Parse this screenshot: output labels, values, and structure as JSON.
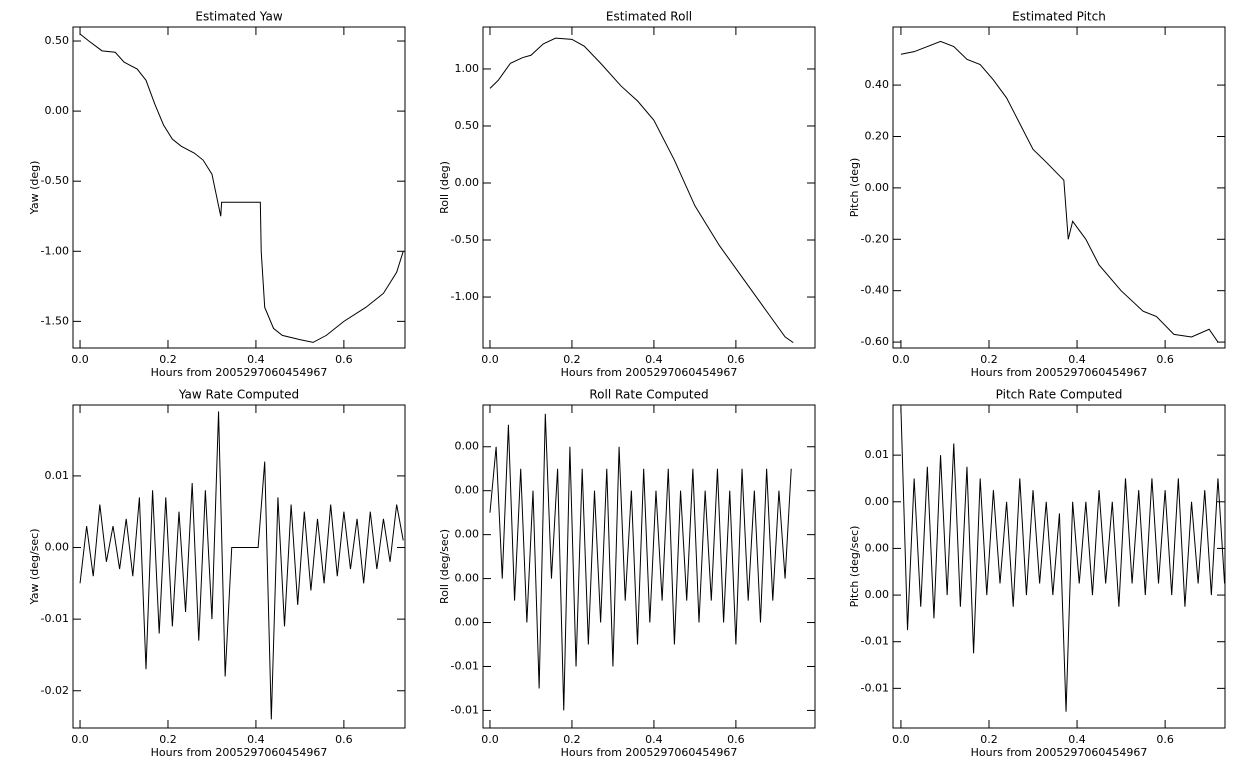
{
  "chart_data": [
    {
      "type": "line",
      "title": "Estimated Yaw",
      "xlabel": "Hours from 2005297060454967",
      "ylabel": "Yaw (deg)",
      "color": "#000000",
      "x": [
        0,
        0.02,
        0.05,
        0.08,
        0.1,
        0.13,
        0.15,
        0.17,
        0.19,
        0.21,
        0.23,
        0.26,
        0.28,
        0.3,
        0.31,
        0.32,
        0.322,
        0.41,
        0.412,
        0.42,
        0.44,
        0.46,
        0.5,
        0.53,
        0.56,
        0.6,
        0.65,
        0.69,
        0.72,
        0.735
      ],
      "values": [
        0.55,
        0.5,
        0.43,
        0.42,
        0.35,
        0.3,
        0.22,
        0.05,
        -0.1,
        -0.2,
        -0.25,
        -0.3,
        -0.35,
        -0.45,
        -0.6,
        -0.75,
        -0.65,
        -0.65,
        -1.0,
        -1.4,
        -1.55,
        -1.6,
        -1.63,
        -1.65,
        -1.6,
        -1.5,
        -1.4,
        -1.3,
        -1.15,
        -1.0
      ],
      "xlim": [
        -0.016,
        0.739
      ],
      "ylim": [
        -1.69,
        0.6
      ],
      "xticks": [
        {
          "value": 0,
          "label": "0.0"
        },
        0.2,
        0.4,
        0.6
      ],
      "yticks": [
        {
          "value": 0.5,
          "label": "0.50"
        },
        {
          "value": 0,
          "label": "0.00"
        },
        {
          "value": -0.5,
          "label": "-0.50"
        },
        {
          "value": -1,
          "label": "-1.00"
        },
        {
          "value": -1.5,
          "label": "-1.50"
        }
      ]
    },
    {
      "type": "line",
      "title": "Estimated Roll",
      "xlabel": "Hours from 2005297060454967",
      "ylabel": "Roll (deg)",
      "color": "#000000",
      "x": [
        0,
        0.02,
        0.05,
        0.08,
        0.1,
        0.13,
        0.16,
        0.2,
        0.23,
        0.27,
        0.32,
        0.36,
        0.4,
        0.45,
        0.5,
        0.56,
        0.62,
        0.68,
        0.72,
        0.74
      ],
      "values": [
        0.83,
        0.9,
        1.05,
        1.1,
        1.12,
        1.22,
        1.27,
        1.26,
        1.2,
        1.05,
        0.85,
        0.72,
        0.55,
        0.2,
        -0.2,
        -0.55,
        -0.85,
        -1.15,
        -1.35,
        -1.4
      ],
      "xlim": [
        -0.017,
        0.793
      ],
      "ylim": [
        -1.447,
        1.368
      ],
      "xticks": [
        {
          "value": 0,
          "label": "0.0"
        },
        0.2,
        0.4,
        0.6
      ],
      "yticks": [
        {
          "value": 1,
          "label": "1.00"
        },
        {
          "value": 0.5,
          "label": "0.50"
        },
        {
          "value": 0,
          "label": "0.00"
        },
        {
          "value": -0.5,
          "label": "-0.50"
        },
        {
          "value": -1,
          "label": "-1.00"
        }
      ]
    },
    {
      "type": "line",
      "title": "Estimated Pitch",
      "xlabel": "Hours from 2005297060454967",
      "ylabel": "Pitch (deg)",
      "color": "#000000",
      "x": [
        0,
        0.03,
        0.06,
        0.09,
        0.12,
        0.15,
        0.18,
        0.21,
        0.24,
        0.27,
        0.3,
        0.33,
        0.37,
        0.38,
        0.39,
        0.42,
        0.45,
        0.5,
        0.55,
        0.58,
        0.62,
        0.66,
        0.7,
        0.72
      ],
      "values": [
        0.52,
        0.53,
        0.55,
        0.57,
        0.55,
        0.5,
        0.48,
        0.42,
        0.35,
        0.25,
        0.15,
        0.1,
        0.03,
        -0.2,
        -0.13,
        -0.2,
        -0.3,
        -0.4,
        -0.48,
        -0.5,
        -0.57,
        -0.58,
        -0.55,
        -0.6
      ],
      "xlim": [
        -0.018,
        0.736
      ],
      "ylim": [
        -0.623,
        0.626
      ],
      "xticks": [
        {
          "value": 0,
          "label": "0.0"
        },
        0.2,
        0.4,
        0.6
      ],
      "yticks": [
        {
          "value": 0.4,
          "label": "0.40"
        },
        {
          "value": 0.2,
          "label": "0.20"
        },
        {
          "value": 0,
          "label": "0.00"
        },
        {
          "value": -0.2,
          "label": "-0.20"
        },
        {
          "value": -0.4,
          "label": "-0.40"
        },
        {
          "value": -0.6,
          "label": "-0.60"
        }
      ]
    },
    {
      "type": "line",
      "title": "Yaw Rate Computed",
      "xlabel": "Hours from 2005297060454967",
      "ylabel": "Yaw (deg/sec)",
      "color": "#000000",
      "x": [
        0,
        0.015,
        0.03,
        0.045,
        0.06,
        0.075,
        0.09,
        0.105,
        0.12,
        0.135,
        0.15,
        0.165,
        0.18,
        0.195,
        0.21,
        0.225,
        0.24,
        0.255,
        0.27,
        0.285,
        0.3,
        0.315,
        0.33,
        0.345,
        0.36,
        0.375,
        0.39,
        0.405,
        0.42,
        0.435,
        0.45,
        0.465,
        0.48,
        0.495,
        0.51,
        0.525,
        0.54,
        0.555,
        0.57,
        0.585,
        0.6,
        0.615,
        0.63,
        0.645,
        0.66,
        0.675,
        0.69,
        0.705,
        0.72,
        0.735
      ],
      "values": [
        -0.005,
        0.003,
        -0.004,
        0.006,
        -0.002,
        0.003,
        -0.003,
        0.004,
        -0.004,
        0.007,
        -0.017,
        0.008,
        -0.012,
        0.007,
        -0.011,
        0.005,
        -0.009,
        0.009,
        -0.013,
        0.008,
        -0.01,
        0.019,
        -0.018,
        0,
        0,
        0,
        0,
        0,
        0.012,
        -0.024,
        0.007,
        -0.011,
        0.006,
        -0.008,
        0.005,
        -0.006,
        0.004,
        -0.005,
        0.006,
        -0.004,
        0.005,
        -0.003,
        0.004,
        -0.005,
        0.005,
        -0.003,
        0.004,
        -0.002,
        0.006,
        0.001
      ],
      "xlim": [
        -0.016,
        0.739
      ],
      "ylim": [
        -0.0252,
        0.0199
      ],
      "xticks": [
        {
          "value": 0,
          "label": "0.0"
        },
        0.2,
        0.4,
        0.6
      ],
      "yticks": [
        0.01,
        {
          "value": 0,
          "label": "0.00"
        },
        -0.01,
        -0.02
      ]
    },
    {
      "type": "line",
      "title": "Roll Rate Computed",
      "xlabel": "Hours from 2005297060454967",
      "ylabel": "Roll (deg/sec)",
      "color": "#000000",
      "x": [
        0,
        0.015,
        0.03,
        0.045,
        0.06,
        0.075,
        0.09,
        0.105,
        0.12,
        0.135,
        0.15,
        0.165,
        0.18,
        0.195,
        0.21,
        0.225,
        0.24,
        0.255,
        0.27,
        0.285,
        0.3,
        0.315,
        0.33,
        0.345,
        0.36,
        0.375,
        0.39,
        0.405,
        0.42,
        0.435,
        0.45,
        0.465,
        0.48,
        0.495,
        0.51,
        0.525,
        0.54,
        0.555,
        0.57,
        0.585,
        0.6,
        0.615,
        0.63,
        0.645,
        0.66,
        0.675,
        0.69,
        0.705,
        0.72,
        0.735
      ],
      "values": [
        0.001,
        0.004,
        -0.002,
        0.005,
        -0.003,
        0.003,
        -0.004,
        0.002,
        -0.007,
        0.0055,
        -0.002,
        0.003,
        -0.008,
        0.004,
        -0.006,
        0.003,
        -0.005,
        0.002,
        -0.004,
        0.003,
        -0.006,
        0.004,
        -0.003,
        0.002,
        -0.005,
        0.003,
        -0.004,
        0.002,
        -0.003,
        0.003,
        -0.005,
        0.002,
        -0.003,
        0.003,
        -0.004,
        0.002,
        -0.003,
        0.003,
        -0.004,
        0.002,
        -0.005,
        0.003,
        -0.003,
        0.002,
        -0.004,
        0.003,
        -0.003,
        0.002,
        -0.002,
        0.003
      ],
      "xlim": [
        -0.017,
        0.793
      ],
      "ylim": [
        -0.0088,
        0.0059
      ],
      "xticks": [
        {
          "value": 0,
          "label": "0.0"
        },
        0.2,
        0.4,
        0.6
      ],
      "yticks": [
        {
          "value": 0.004,
          "label": "0.00"
        },
        {
          "value": 0.002,
          "label": "0.00"
        },
        {
          "value": 0,
          "label": "0.00"
        },
        {
          "value": -0.002,
          "label": "0.00"
        },
        {
          "value": -0.004,
          "label": "0.00"
        },
        {
          "value": -0.006,
          "label": "-0.01"
        },
        {
          "value": -0.008,
          "label": "-0.01"
        }
      ]
    },
    {
      "type": "line",
      "title": "Pitch Rate Computed",
      "xlabel": "Hours from 2005297060454967",
      "ylabel": "Pitch (deg/sec)",
      "color": "#000000",
      "x": [
        0,
        0.015,
        0.03,
        0.045,
        0.06,
        0.075,
        0.09,
        0.105,
        0.12,
        0.135,
        0.15,
        0.165,
        0.18,
        0.195,
        0.21,
        0.225,
        0.24,
        0.255,
        0.27,
        0.285,
        0.3,
        0.315,
        0.33,
        0.345,
        0.36,
        0.375,
        0.39,
        0.405,
        0.42,
        0.435,
        0.45,
        0.465,
        0.48,
        0.495,
        0.51,
        0.525,
        0.54,
        0.555,
        0.57,
        0.585,
        0.6,
        0.615,
        0.63,
        0.645,
        0.66,
        0.675,
        0.69,
        0.705,
        0.72,
        0.735
      ],
      "values": [
        0.012,
        -0.007,
        0.006,
        -0.005,
        0.007,
        -0.006,
        0.008,
        -0.004,
        0.009,
        -0.005,
        0.007,
        -0.009,
        0.006,
        -0.004,
        0.005,
        -0.003,
        0.004,
        -0.005,
        0.006,
        -0.004,
        0.005,
        -0.003,
        0.004,
        -0.004,
        0.003,
        -0.014,
        0.004,
        -0.003,
        0.004,
        -0.004,
        0.005,
        -0.003,
        0.004,
        -0.005,
        0.006,
        -0.003,
        0.005,
        -0.004,
        0.006,
        -0.003,
        0.005,
        -0.004,
        0.006,
        -0.005,
        0.004,
        -0.003,
        0.005,
        -0.004,
        0.006,
        -0.003
      ],
      "xlim": [
        -0.018,
        0.736
      ],
      "ylim": [
        -0.0154,
        0.0123
      ],
      "xticks": [
        {
          "value": 0,
          "label": "0.0"
        },
        0.2,
        0.4,
        0.6
      ],
      "yticks": [
        {
          "value": 0.008,
          "label": "0.01"
        },
        {
          "value": 0.004,
          "label": "0.00"
        },
        {
          "value": 0,
          "label": "0.00"
        },
        {
          "value": -0.004,
          "label": "0.00"
        },
        {
          "value": -0.008,
          "label": "-0.01"
        },
        {
          "value": -0.012,
          "label": "-0.01"
        }
      ]
    }
  ]
}
